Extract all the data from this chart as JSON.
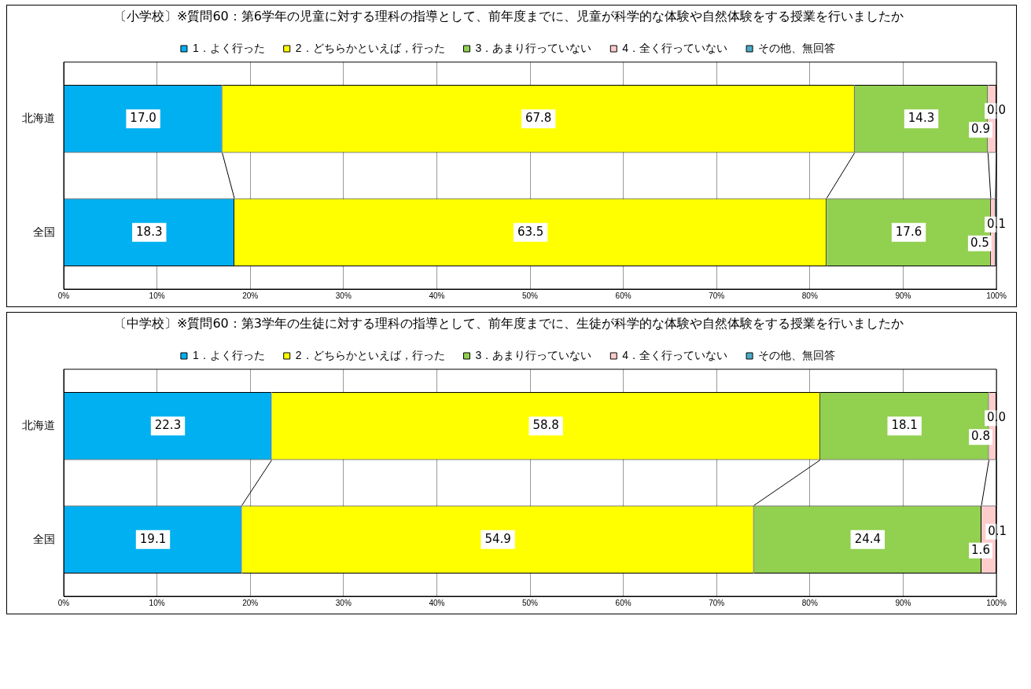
{
  "chart_data": [
    {
      "type": "bar",
      "orientation": "horizontal",
      "stacked": true,
      "title": "〔小学校〕※質問60：第6学年の児童に対する理科の指導として、前年度までに、児童が科学的な体験や自然体験をする授業を行いましたか",
      "categories": [
        "北海道",
        "全国"
      ],
      "xlim": [
        0,
        100
      ],
      "xticks": [
        {
          "value": 0,
          "label": "0%"
        },
        {
          "value": 10,
          "label": "10%"
        },
        {
          "value": 20,
          "label": "20%"
        },
        {
          "value": 30,
          "label": "30%"
        },
        {
          "value": 40,
          "label": "40%"
        },
        {
          "value": 50,
          "label": "50%"
        },
        {
          "value": 60,
          "label": "60%"
        },
        {
          "value": 70,
          "label": "70%"
        },
        {
          "value": 80,
          "label": "80%"
        },
        {
          "value": 90,
          "label": "90%"
        },
        {
          "value": 100,
          "label": "100%"
        }
      ],
      "grid": "x",
      "legend": "top",
      "series": [
        {
          "name": "1．よく行った",
          "color": "#00b0f0",
          "values": [
            17.0,
            18.3
          ],
          "value_labels": [
            "17.0",
            "18.3"
          ]
        },
        {
          "name": "2．どちらかといえば，行った",
          "color": "#ffff00",
          "values": [
            67.8,
            63.5
          ],
          "value_labels": [
            "67.8",
            "63.5"
          ]
        },
        {
          "name": "3．あまり行っていない",
          "color": "#92d050",
          "values": [
            14.3,
            17.6
          ],
          "value_labels": [
            "14.3",
            "17.6"
          ]
        },
        {
          "name": "4．全く行っていない",
          "color": "#ffcccc",
          "values": [
            0.9,
            0.5
          ],
          "value_labels": [
            "0.9",
            "0.5"
          ]
        },
        {
          "name": "その他、無回答",
          "color": "#4bacc6",
          "values": [
            0.0,
            0.1
          ],
          "value_labels": [
            "0.0",
            "0.1"
          ]
        }
      ]
    },
    {
      "type": "bar",
      "orientation": "horizontal",
      "stacked": true,
      "title": "〔中学校〕※質問60：第3学年の生徒に対する理科の指導として、前年度までに、生徒が科学的な体験や自然体験をする授業を行いましたか",
      "categories": [
        "北海道",
        "全国"
      ],
      "xlim": [
        0,
        100
      ],
      "xticks": [
        {
          "value": 0,
          "label": "0%"
        },
        {
          "value": 10,
          "label": "10%"
        },
        {
          "value": 20,
          "label": "20%"
        },
        {
          "value": 30,
          "label": "30%"
        },
        {
          "value": 40,
          "label": "40%"
        },
        {
          "value": 50,
          "label": "50%"
        },
        {
          "value": 60,
          "label": "60%"
        },
        {
          "value": 70,
          "label": "70%"
        },
        {
          "value": 80,
          "label": "80%"
        },
        {
          "value": 90,
          "label": "90%"
        },
        {
          "value": 100,
          "label": "100%"
        }
      ],
      "grid": "x",
      "legend": "top",
      "series": [
        {
          "name": "1．よく行った",
          "color": "#00b0f0",
          "values": [
            22.3,
            19.1
          ],
          "value_labels": [
            "22.3",
            "19.1"
          ]
        },
        {
          "name": "2．どちらかといえば，行った",
          "color": "#ffff00",
          "values": [
            58.8,
            54.9
          ],
          "value_labels": [
            "58.8",
            "54.9"
          ]
        },
        {
          "name": "3．あまり行っていない",
          "color": "#92d050",
          "values": [
            18.1,
            24.4
          ],
          "value_labels": [
            "18.1",
            "24.4"
          ]
        },
        {
          "name": "4．全く行っていない",
          "color": "#ffcccc",
          "values": [
            0.8,
            1.6
          ],
          "value_labels": [
            "0.8",
            "1.6"
          ]
        },
        {
          "name": "その他、無回答",
          "color": "#4bacc6",
          "values": [
            0.0,
            0.1
          ],
          "value_labels": [
            "0.0",
            "0.1"
          ]
        }
      ]
    }
  ]
}
